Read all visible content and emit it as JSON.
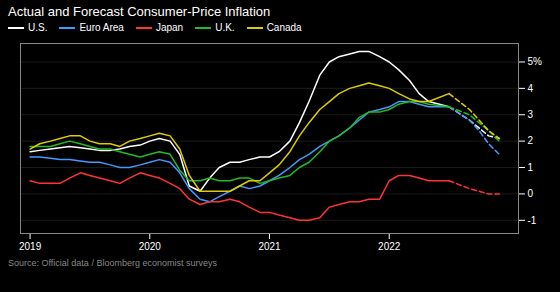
{
  "chart_data": {
    "type": "line",
    "title": "Actual and Forecast Consumer-Price Inflation",
    "source": "Source: Official data / Bloomberg economist surveys",
    "x": [
      2019.0,
      2019.08,
      2019.17,
      2019.25,
      2019.33,
      2019.42,
      2019.5,
      2019.58,
      2019.67,
      2019.75,
      2019.83,
      2019.92,
      2020.0,
      2020.08,
      2020.17,
      2020.25,
      2020.33,
      2020.42,
      2020.5,
      2020.58,
      2020.67,
      2020.75,
      2020.83,
      2020.92,
      2021.0,
      2021.08,
      2021.17,
      2021.25,
      2021.33,
      2021.42,
      2021.5,
      2021.58,
      2021.67,
      2021.75,
      2021.83,
      2021.92,
      2022.0,
      2022.08,
      2022.17,
      2022.25,
      2022.33,
      2022.5,
      2022.5,
      2022.67,
      2022.75,
      2022.83,
      2022.92
    ],
    "series": [
      {
        "name": "U.S.",
        "color": "#ffffff",
        "line_style": "solid",
        "forecast_from": 2022.5,
        "values": [
          1.6,
          1.65,
          1.7,
          1.75,
          1.8,
          1.75,
          1.7,
          1.65,
          1.65,
          1.7,
          1.8,
          1.85,
          2.0,
          2.1,
          2.0,
          1.5,
          0.3,
          0.1,
          0.6,
          1.0,
          1.2,
          1.2,
          1.3,
          1.4,
          1.4,
          1.6,
          2.0,
          2.7,
          3.5,
          4.5,
          5.0,
          5.2,
          5.3,
          5.4,
          5.4,
          5.2,
          5.0,
          4.7,
          4.3,
          3.8,
          3.5,
          3.3,
          3.3,
          2.8,
          2.5,
          2.2,
          2.1
        ]
      },
      {
        "name": "Euro Area",
        "color": "#4499ff",
        "line_style": "solid",
        "forecast_from": 2022.5,
        "values": [
          1.4,
          1.4,
          1.35,
          1.3,
          1.3,
          1.25,
          1.2,
          1.2,
          1.1,
          1.0,
          1.0,
          1.1,
          1.2,
          1.3,
          1.2,
          0.8,
          0.2,
          -0.2,
          -0.3,
          -0.1,
          0.1,
          0.3,
          0.2,
          0.3,
          0.5,
          0.7,
          1.0,
          1.3,
          1.5,
          1.8,
          2.0,
          2.2,
          2.5,
          2.8,
          3.1,
          3.2,
          3.3,
          3.5,
          3.5,
          3.4,
          3.3,
          3.3,
          3.3,
          2.8,
          2.4,
          1.9,
          1.5
        ]
      },
      {
        "name": "Japan",
        "color": "#ff3333",
        "line_style": "solid",
        "forecast_from": 2022.5,
        "values": [
          0.5,
          0.4,
          0.4,
          0.4,
          0.6,
          0.8,
          0.7,
          0.6,
          0.5,
          0.4,
          0.6,
          0.8,
          0.7,
          0.6,
          0.4,
          0.2,
          -0.2,
          -0.4,
          -0.3,
          -0.3,
          -0.2,
          -0.3,
          -0.5,
          -0.7,
          -0.7,
          -0.8,
          -0.9,
          -1.0,
          -1.0,
          -0.9,
          -0.5,
          -0.4,
          -0.3,
          -0.3,
          -0.2,
          -0.2,
          0.5,
          0.7,
          0.7,
          0.6,
          0.5,
          0.5,
          0.5,
          0.2,
          0.1,
          0.0,
          0.0
        ]
      },
      {
        "name": "U.K.",
        "color": "#22bb22",
        "line_style": "solid",
        "forecast_from": 2022.5,
        "values": [
          1.8,
          1.8,
          1.8,
          1.9,
          2.0,
          1.9,
          1.8,
          1.7,
          1.7,
          1.6,
          1.5,
          1.4,
          1.5,
          1.6,
          1.5,
          0.9,
          0.5,
          0.5,
          0.6,
          0.5,
          0.5,
          0.6,
          0.6,
          0.4,
          0.5,
          0.6,
          0.7,
          1.0,
          1.2,
          1.6,
          2.0,
          2.2,
          2.5,
          2.9,
          3.1,
          3.1,
          3.2,
          3.4,
          3.5,
          3.5,
          3.4,
          3.3,
          3.3,
          3.0,
          2.7,
          2.4,
          2.0
        ]
      },
      {
        "name": "Canada",
        "color": "#ddcc00",
        "line_style": "solid",
        "forecast_from": 2022.5,
        "values": [
          1.7,
          1.9,
          2.0,
          2.1,
          2.2,
          2.2,
          2.0,
          1.9,
          1.9,
          1.8,
          2.0,
          2.1,
          2.2,
          2.3,
          2.2,
          1.7,
          0.7,
          0.1,
          0.1,
          0.1,
          0.1,
          0.3,
          0.5,
          0.5,
          0.8,
          1.1,
          1.6,
          2.2,
          2.7,
          3.2,
          3.5,
          3.8,
          4.0,
          4.1,
          4.2,
          4.1,
          4.0,
          3.8,
          3.6,
          3.5,
          3.5,
          3.8,
          3.8,
          3.2,
          2.8,
          2.4,
          2.1
        ]
      }
    ],
    "xlim": [
      2018.92,
      2023.08
    ],
    "xticks": [
      2019,
      2020,
      2021,
      2022
    ],
    "ylim": [
      -1.5,
      5.7
    ],
    "yticks": [
      -1,
      0,
      1,
      2,
      3,
      4,
      {
        "value": 5,
        "label": "5%"
      }
    ],
    "grid": true,
    "legend": "top-left"
  }
}
